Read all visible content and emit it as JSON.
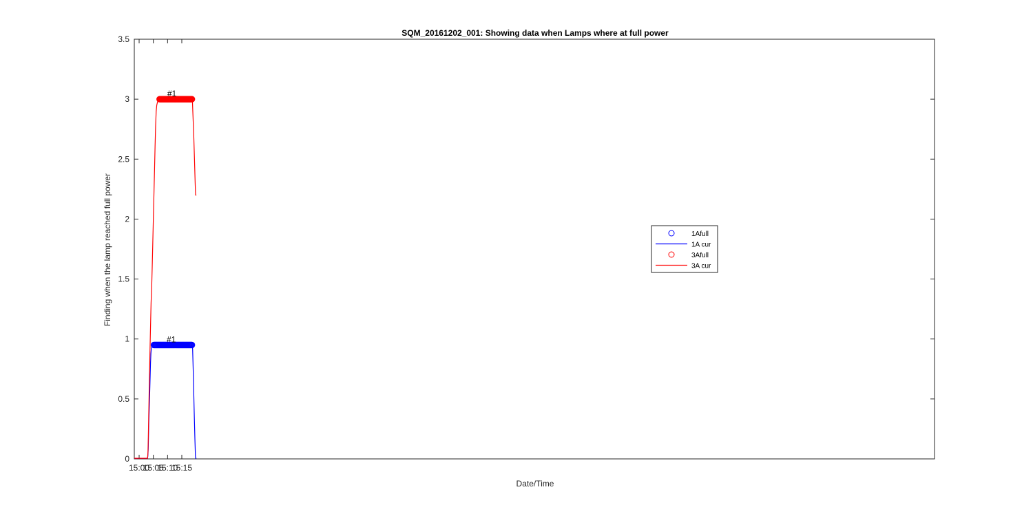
{
  "chart_data": {
    "type": "line",
    "title": "SQM_20161202_001: Showing data when Lamps where at full power",
    "xlabel": "Date/Time",
    "ylabel": "Finding when the lamp reached full power",
    "xlim_min": [
      898.3,
      1179.6
    ],
    "ylim": [
      0,
      3.5
    ],
    "x_ticks": [
      {
        "value": 900,
        "label": "15:00"
      },
      {
        "value": 905,
        "label": "15:05"
      },
      {
        "value": 910,
        "label": "15:10"
      },
      {
        "value": 915,
        "label": "15:15"
      }
    ],
    "y_ticks": [
      {
        "value": 0,
        "label": "0"
      },
      {
        "value": 0.5,
        "label": "0.5"
      },
      {
        "value": 1,
        "label": "1"
      },
      {
        "value": 1.5,
        "label": "1.5"
      },
      {
        "value": 2,
        "label": "2"
      },
      {
        "value": 2.5,
        "label": "2.5"
      },
      {
        "value": 3,
        "label": "3"
      },
      {
        "value": 3.5,
        "label": "3.5"
      }
    ],
    "grid": false,
    "legend_position": "center-right",
    "series": [
      {
        "name": "1Afull",
        "kind": "markers",
        "marker": "circle",
        "color": "#0000ff",
        "x_start": 905.2,
        "x_end": 918.55,
        "count": 66,
        "y": 0.95
      },
      {
        "name": "1A cur",
        "kind": "line",
        "color": "#0000ff",
        "points": [
          [
            898.3,
            0.005
          ],
          [
            902.9,
            0.005
          ],
          [
            903.05,
            0.02
          ],
          [
            903.2,
            0.08
          ],
          [
            903.4,
            0.3
          ],
          [
            903.6,
            0.45
          ],
          [
            903.8,
            0.62
          ],
          [
            904.0,
            0.8
          ],
          [
            904.15,
            0.88
          ],
          [
            904.3,
            0.92
          ],
          [
            904.5,
            0.94
          ],
          [
            904.8,
            0.948
          ],
          [
            905.2,
            0.95
          ],
          [
            918.55,
            0.95
          ],
          [
            918.8,
            0.92
          ],
          [
            919.0,
            0.75
          ],
          [
            919.2,
            0.55
          ],
          [
            919.4,
            0.35
          ],
          [
            919.6,
            0.17
          ],
          [
            919.8,
            0.02
          ],
          [
            919.9,
            0.005
          ],
          [
            920.12,
            0.005
          ]
        ]
      },
      {
        "name": "3Afull",
        "kind": "markers",
        "marker": "circle",
        "color": "#ff0000",
        "x_start": 907.2,
        "x_end": 918.55,
        "count": 67,
        "y": 3.0
      },
      {
        "name": "3A cur",
        "kind": "line",
        "color": "#ff0000",
        "points": [
          [
            898.3,
            0.005
          ],
          [
            902.95,
            0.005
          ],
          [
            903.1,
            0.05
          ],
          [
            903.2,
            0.15
          ],
          [
            903.4,
            0.4
          ],
          [
            903.6,
            0.65
          ],
          [
            903.8,
            0.88
          ],
          [
            904.0,
            1.1
          ],
          [
            904.2,
            1.3
          ],
          [
            904.4,
            1.42
          ],
          [
            904.6,
            1.6
          ],
          [
            904.8,
            1.8
          ],
          [
            905.0,
            2.0
          ],
          [
            905.2,
            2.2
          ],
          [
            905.4,
            2.4
          ],
          [
            905.6,
            2.6
          ],
          [
            905.8,
            2.78
          ],
          [
            906.0,
            2.9
          ],
          [
            906.2,
            2.95
          ],
          [
            906.5,
            2.98
          ],
          [
            906.8,
            2.995
          ],
          [
            907.2,
            3.0
          ],
          [
            918.55,
            3.0
          ],
          [
            918.75,
            2.97
          ],
          [
            918.95,
            2.85
          ],
          [
            919.2,
            2.7
          ],
          [
            919.45,
            2.5
          ],
          [
            919.7,
            2.3
          ],
          [
            919.85,
            2.2
          ],
          [
            920.12,
            2.2
          ]
        ]
      }
    ],
    "annotations": [
      {
        "text": "#1",
        "x": 911.5,
        "y": 3.0
      },
      {
        "text": "#1",
        "x": 911.3,
        "y": 0.95
      }
    ]
  }
}
